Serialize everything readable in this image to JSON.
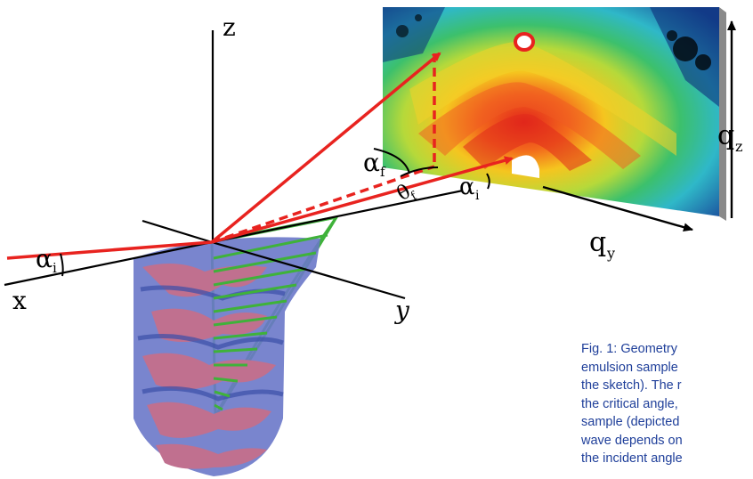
{
  "figure": {
    "axis_labels": {
      "x": "x",
      "y": "y",
      "z": "z"
    },
    "detector_axes": {
      "qy": "q",
      "qy_sub": "y",
      "qz": "q",
      "qz_sub": "z"
    },
    "angles": {
      "alpha_f": "α",
      "alpha_f_sub": "f",
      "alpha_i_left": "α",
      "alpha_i_left_sub": "i",
      "alpha_i_right": "α",
      "alpha_i_right_sub": "i",
      "theta_f": "θ",
      "theta_f_sub": "f"
    },
    "colors": {
      "beam": "#e8231f",
      "footprint": "#3fb23a",
      "sample_blue": "#5a6fd0",
      "sample_pink": "#c0708f",
      "caption": "#1f3f9a"
    }
  },
  "caption": {
    "lines": [
      "Fig. 1: Geometry",
      "emulsion sample",
      "the sketch). The r",
      "the critical angle,",
      "sample (depicted",
      "wave depends on",
      "the incident angle"
    ]
  }
}
